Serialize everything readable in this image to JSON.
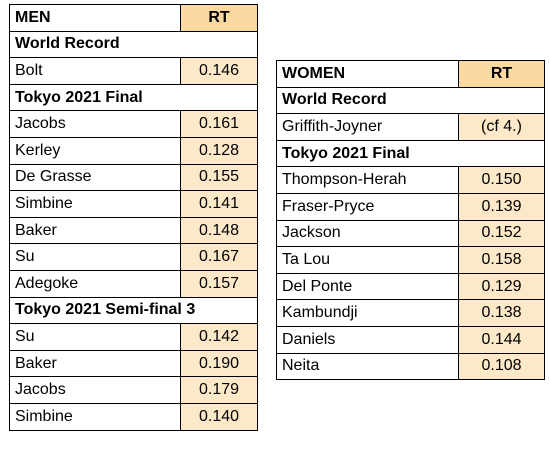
{
  "men": {
    "header": {
      "label": "MEN",
      "rt": "RT"
    },
    "sections": [
      {
        "title": "World Record",
        "rows": [
          {
            "name": "Bolt",
            "rt": "0.146"
          }
        ]
      },
      {
        "title": "Tokyo 2021 Final",
        "rows": [
          {
            "name": "Jacobs",
            "rt": "0.161"
          },
          {
            "name": "Kerley",
            "rt": "0.128"
          },
          {
            "name": "De Grasse",
            "rt": "0.155"
          },
          {
            "name": "Simbine",
            "rt": "0.141"
          },
          {
            "name": "Baker",
            "rt": "0.148"
          },
          {
            "name": "Su",
            "rt": "0.167"
          },
          {
            "name": "Adegoke",
            "rt": "0.157"
          }
        ]
      },
      {
        "title": "Tokyo 2021 Semi-final 3",
        "rows": [
          {
            "name": "Su",
            "rt": "0.142"
          },
          {
            "name": "Baker",
            "rt": "0.190"
          },
          {
            "name": "Jacobs",
            "rt": "0.179"
          },
          {
            "name": "Simbine",
            "rt": "0.140"
          }
        ]
      }
    ]
  },
  "women": {
    "header": {
      "label": "WOMEN",
      "rt": "RT"
    },
    "sections": [
      {
        "title": "World Record",
        "rows": [
          {
            "name": "Griffith-Joyner",
            "rt": "(cf 4.)"
          }
        ]
      },
      {
        "title": "Tokyo 2021 Final",
        "rows": [
          {
            "name": "Thompson-Herah",
            "rt": "0.150"
          },
          {
            "name": "Fraser-Pryce",
            "rt": "0.139"
          },
          {
            "name": "Jackson",
            "rt": "0.152"
          },
          {
            "name": "Ta Lou",
            "rt": "0.158"
          },
          {
            "name": "Del Ponte",
            "rt": "0.129"
          },
          {
            "name": "Kambundji",
            "rt": "0.138"
          },
          {
            "name": "Daniels",
            "rt": "0.144"
          },
          {
            "name": "Neita",
            "rt": "0.108"
          }
        ]
      }
    ]
  },
  "colors": {
    "header_rt_fill": "#fcd9a1",
    "rt_fill": "#fde9c8",
    "border": "#000000"
  }
}
